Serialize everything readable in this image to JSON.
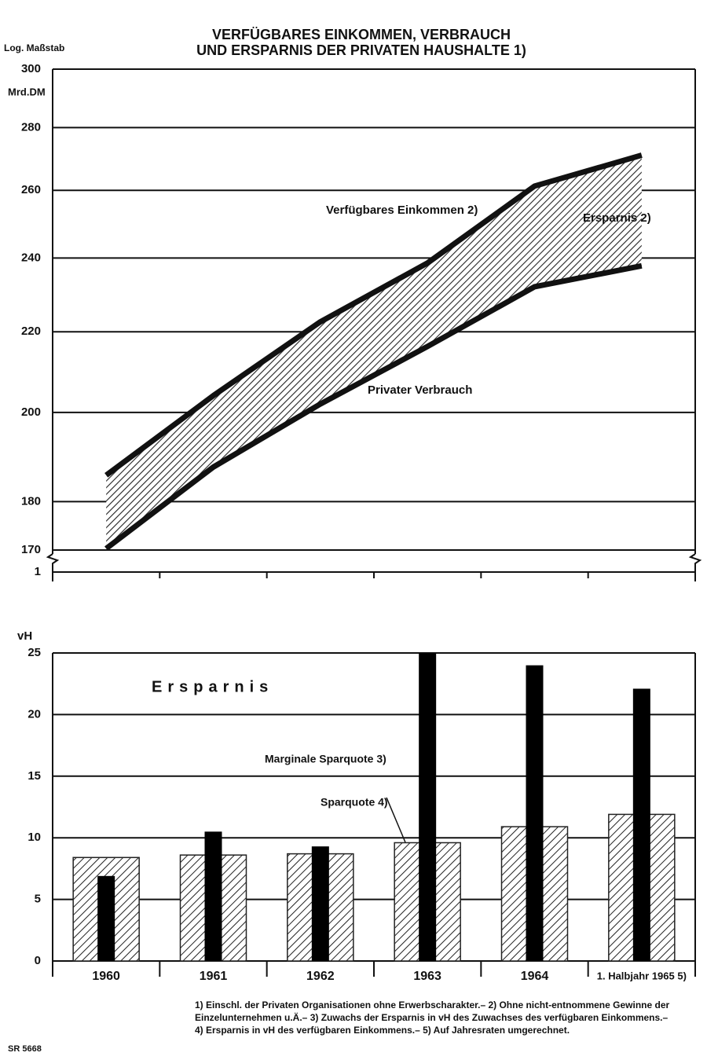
{
  "title": [
    "VERFÜGBARES EINKOMMEN, VERBRAUCH",
    "UND ERSPARNIS DER PRIVATEN HAUSHALTE 1)"
  ],
  "chart_data": [
    {
      "type": "line",
      "log": true,
      "grid": true,
      "y_axis_labels": [
        "Log. Maßstab",
        "Mrd.DM"
      ],
      "axis_break_label": "1",
      "categories": [
        null,
        null,
        null,
        null,
        null,
        null
      ],
      "series": [
        {
          "name": "Verfügbares Einkommen 2)",
          "color": "#111111",
          "values": [
            185.7,
            204,
            222.6,
            238.6,
            261.3,
            271
          ]
        },
        {
          "name": "Privater Verbrauch",
          "color": "#111111",
          "values": [
            170.3,
            187.5,
            202,
            216.2,
            232,
            237.8
          ]
        }
      ],
      "annotations": [
        "Ersparnis 2)"
      ],
      "ylim": [
        170,
        300
      ],
      "yticks": [
        170,
        180,
        200,
        220,
        240,
        260,
        280,
        300
      ]
    },
    {
      "type": "bar",
      "grid": true,
      "y_axis_label": "vH",
      "annotations": [
        "Ersparnis"
      ],
      "categories": [
        "1960",
        "1961",
        "1962",
        "1963",
        "1964",
        "1. Halbjahr 1965 5)"
      ],
      "series": [
        {
          "name": "Sparquote 4)",
          "color": "#222222",
          "values": [
            8.4,
            8.6,
            8.7,
            9.6,
            10.9,
            11.9
          ]
        },
        {
          "name": "Marginale Sparquote 3)",
          "color": "#000000",
          "values": [
            6.9,
            10.5,
            9.3,
            25,
            24.0,
            22.1
          ]
        }
      ],
      "ylim": [
        0,
        25
      ],
      "yticks": [
        0,
        5,
        10,
        15,
        20,
        25
      ]
    }
  ],
  "footnotes": [
    "1) Einschl. der Privaten Organisationen ohne Erwerbscharakter.– 2) Ohne nicht-entnommene Gewinne der",
    "Einzelunternehmen u.Ä.– 3) Zuwachs der Ersparnis in vH des Zuwachses des verfügbaren Einkommens.–",
    "4) Ersparnis in vH des verfügbaren Einkommens.– 5) Auf Jahresraten umgerechnet."
  ],
  "source_code": "SR 5668"
}
